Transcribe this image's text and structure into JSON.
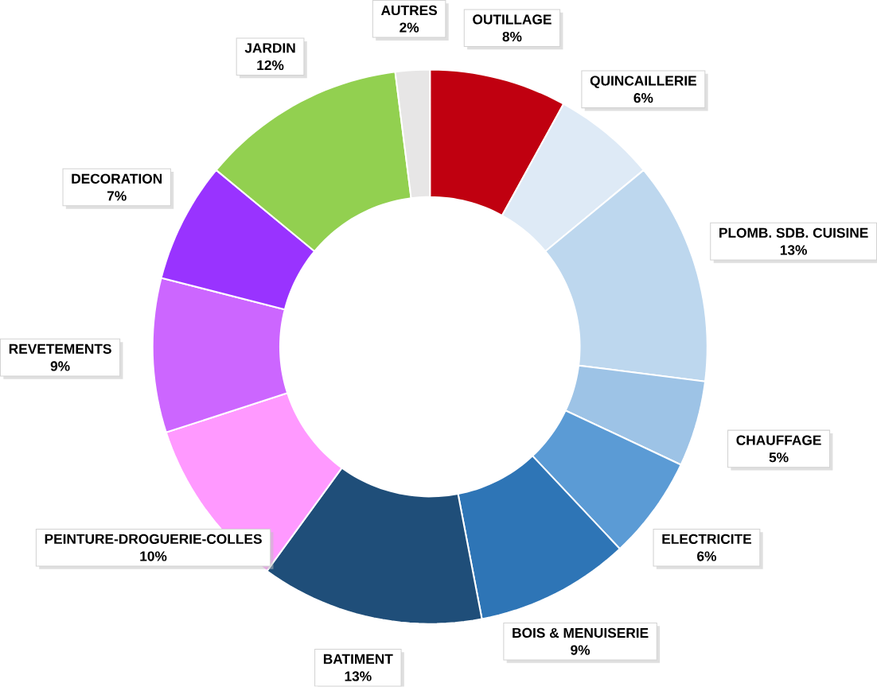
{
  "chart_data": {
    "type": "donut",
    "categories": [
      "OUTILLAGE",
      "QUINCAILLERIE",
      "PLOMB. SDB. CUISINE",
      "CHAUFFAGE",
      "ELECTRICITE",
      "BOIS & MENUISERIE",
      "BATIMENT",
      "PEINTURE-DROGUERIE-COLLES",
      "REVETEMENTS",
      "DECORATION",
      "JARDIN",
      "AUTRES"
    ],
    "values": [
      8,
      6,
      13,
      5,
      6,
      9,
      13,
      10,
      9,
      7,
      12,
      2
    ],
    "value_labels": [
      "8%",
      "6%",
      "13%",
      "5%",
      "6%",
      "9%",
      "13%",
      "10%",
      "9%",
      "7%",
      "12%",
      "2%"
    ],
    "colors": [
      "#c00010",
      "#deeaf6",
      "#bdd7ee",
      "#9dc3e6",
      "#5b9bd5",
      "#2e75b6",
      "#1f4e79",
      "#ff99ff",
      "#cc66ff",
      "#9933ff",
      "#92d050",
      "#e7e6e6"
    ]
  }
}
